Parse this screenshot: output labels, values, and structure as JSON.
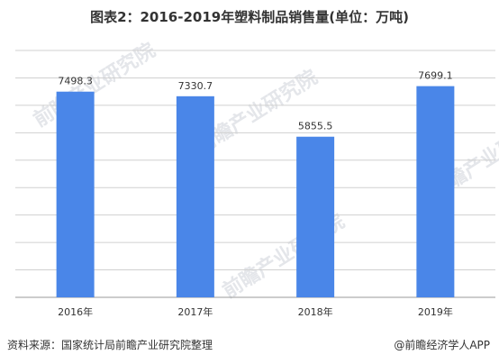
{
  "title": "图表2：2016-2019年塑料制品销售量(单位：万吨)",
  "source": "资料来源：国家统计局前瞻产业研究院整理",
  "credit": "@前瞻经济学人APP",
  "watermark_text": "前瞻产业研究院",
  "colors": {
    "bar": "#4a86e8",
    "grid": "#d0d0d0",
    "axis": "#999999",
    "text": "#333333"
  },
  "chart_data": {
    "type": "bar",
    "title": "图表2：2016-2019年塑料制品销售量(单位：万吨)",
    "categories": [
      "2016年",
      "2017年",
      "2018年",
      "2019年"
    ],
    "series": [
      {
        "values": [
          7498.3,
          7330.7,
          5855.5,
          7699.1
        ]
      }
    ],
    "value_labels": [
      "7498.3",
      "7330.7",
      "5855.5",
      "7699.1"
    ],
    "ylim": [
      0,
      9000
    ],
    "grid": true,
    "y_tick_labels_visible": false
  }
}
